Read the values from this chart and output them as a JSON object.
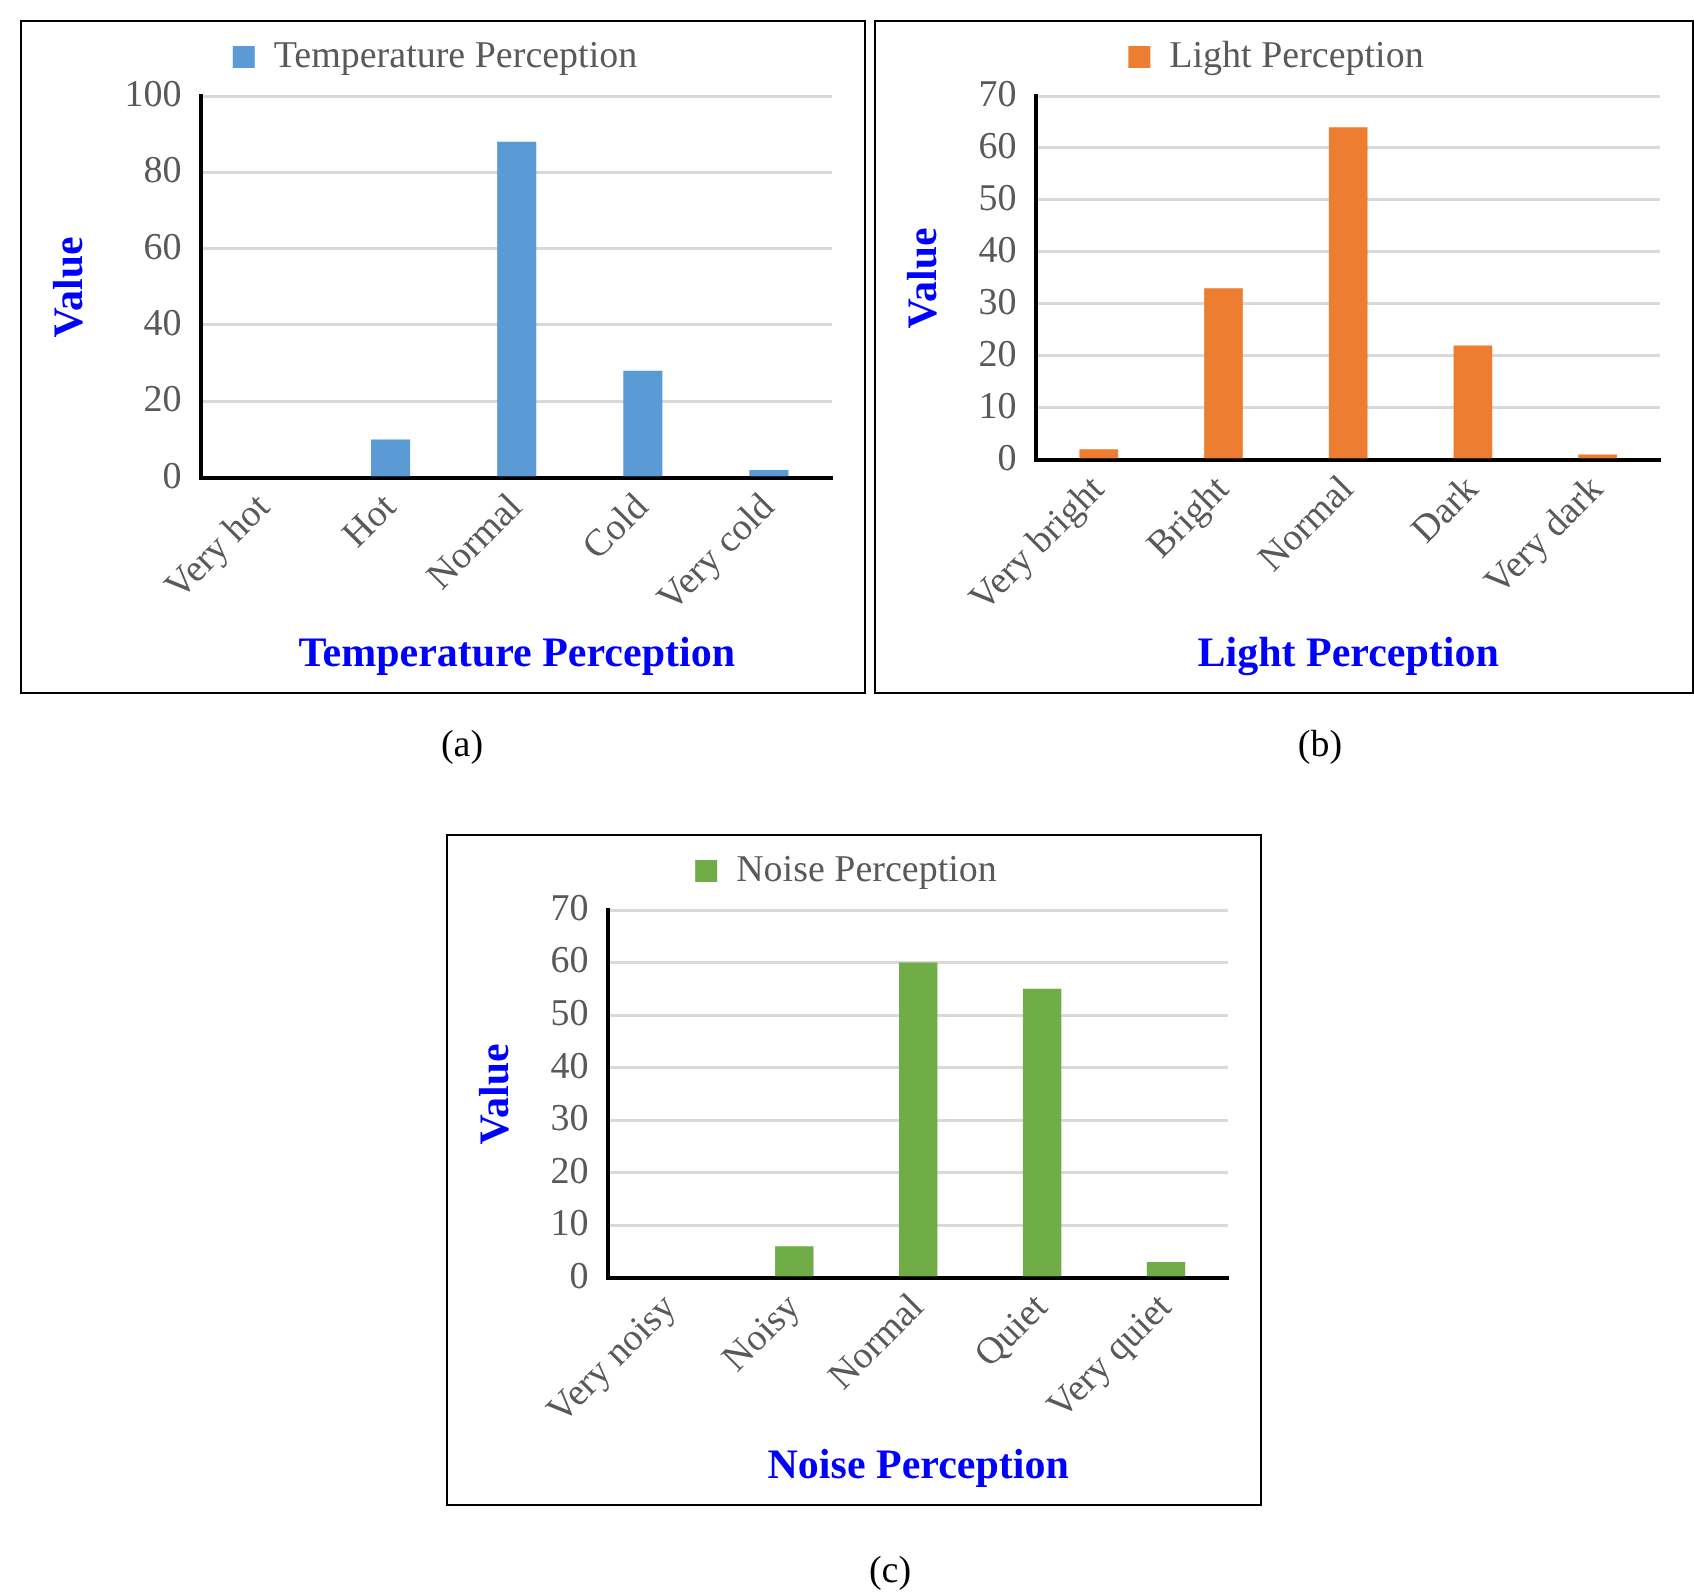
{
  "chart_data": [
    {
      "type": "bar",
      "xlabel": "Temperature Perception",
      "ylabel": "Value",
      "categories": [
        "Very hot",
        "Hot",
        "Normal",
        "Cold",
        "Very cold"
      ],
      "series": [
        {
          "name": "Temperature Perception",
          "color": "#5b9bd5",
          "values": [
            0,
            10,
            88,
            28,
            2
          ]
        }
      ],
      "ylim": [
        0,
        100
      ],
      "yticks": [
        0,
        20,
        40,
        60,
        80,
        100
      ],
      "grid": "y",
      "legend": "top",
      "annotations": [
        "(a)"
      ]
    },
    {
      "type": "bar",
      "xlabel": "Light Perception",
      "ylabel": "Value",
      "categories": [
        "Very bright",
        "Bright",
        "Normal",
        "Dark",
        "Very dark"
      ],
      "series": [
        {
          "name": "Light Perception",
          "color": "#ed7d31",
          "values": [
            2,
            33,
            64,
            22,
            1
          ]
        }
      ],
      "ylim": [
        0,
        70
      ],
      "yticks": [
        0,
        10,
        20,
        30,
        40,
        50,
        60,
        70
      ],
      "grid": "y",
      "legend": "top",
      "annotations": [
        "(b)"
      ]
    },
    {
      "type": "bar",
      "xlabel": "Noise Perception",
      "ylabel": "Value",
      "categories": [
        "Very noisy",
        "Noisy",
        "Normal",
        "Quiet",
        "Very quiet"
      ],
      "series": [
        {
          "name": "Noise Perception",
          "color": "#70ad47",
          "values": [
            0,
            6,
            60,
            55,
            3
          ]
        }
      ],
      "ylim": [
        0,
        70
      ],
      "yticks": [
        0,
        10,
        20,
        30,
        40,
        50,
        60,
        70
      ],
      "grid": "y",
      "legend": "top",
      "annotations": [
        "(c)"
      ]
    }
  ]
}
